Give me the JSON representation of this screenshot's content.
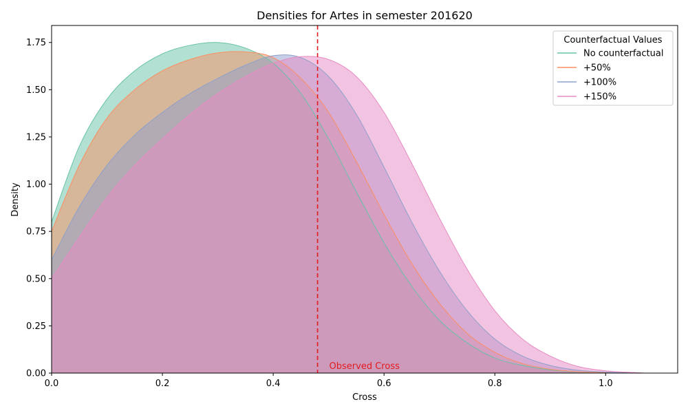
{
  "chart_data": {
    "type": "area",
    "title": "Densities for Artes in semester 201620",
    "xlabel": "Cross",
    "ylabel": "Density",
    "xlim": [
      0.0,
      1.13
    ],
    "ylim": [
      0.0,
      1.84
    ],
    "xticks": [
      0.0,
      0.2,
      0.4,
      0.6,
      0.8,
      1.0
    ],
    "xtick_labels": [
      "0.0",
      "0.2",
      "0.4",
      "0.6",
      "0.8",
      "1.0"
    ],
    "yticks": [
      0.0,
      0.25,
      0.5,
      0.75,
      1.0,
      1.25,
      1.5,
      1.75
    ],
    "ytick_labels": [
      "0.00",
      "0.25",
      "0.50",
      "0.75",
      "1.00",
      "1.25",
      "1.50",
      "1.75"
    ],
    "grid": false,
    "legend": {
      "title": "Counterfactual Values",
      "placement": "top-right"
    },
    "x": [
      0.0,
      0.05,
      0.1,
      0.15,
      0.2,
      0.25,
      0.3,
      0.35,
      0.4,
      0.45,
      0.5,
      0.55,
      0.6,
      0.65,
      0.7,
      0.75,
      0.8,
      0.85,
      0.9,
      0.95,
      1.0,
      1.05,
      1.07
    ],
    "series": [
      {
        "name": "No counterfactual",
        "color": "#66c2a5",
        "values": [
          0.8,
          1.2,
          1.45,
          1.6,
          1.69,
          1.735,
          1.75,
          1.72,
          1.64,
          1.48,
          1.24,
          0.96,
          0.69,
          0.46,
          0.28,
          0.16,
          0.08,
          0.04,
          0.017,
          0.006,
          0.002,
          0.0005,
          0.0
        ]
      },
      {
        "name": "+50%",
        "color": "#fc8d62",
        "values": [
          0.75,
          1.1,
          1.35,
          1.5,
          1.6,
          1.66,
          1.695,
          1.7,
          1.67,
          1.56,
          1.38,
          1.12,
          0.84,
          0.58,
          0.37,
          0.21,
          0.11,
          0.05,
          0.02,
          0.007,
          0.002,
          0.0005,
          0.0
        ]
      },
      {
        "name": "+100%",
        "color": "#8da0cb",
        "values": [
          0.6,
          0.88,
          1.1,
          1.26,
          1.38,
          1.48,
          1.56,
          1.63,
          1.68,
          1.67,
          1.57,
          1.37,
          1.09,
          0.8,
          0.54,
          0.33,
          0.18,
          0.09,
          0.04,
          0.015,
          0.005,
          0.001,
          0.0
        ]
      },
      {
        "name": "+150%",
        "color": "#e78ac3",
        "values": [
          0.5,
          0.72,
          0.93,
          1.1,
          1.24,
          1.37,
          1.48,
          1.57,
          1.64,
          1.675,
          1.66,
          1.57,
          1.38,
          1.11,
          0.82,
          0.55,
          0.33,
          0.18,
          0.09,
          0.035,
          0.012,
          0.003,
          0.0
        ]
      }
    ],
    "reference_line": {
      "x": 0.48,
      "color": "#e31a1c",
      "style": "dashed",
      "label": "Observed Cross"
    }
  }
}
